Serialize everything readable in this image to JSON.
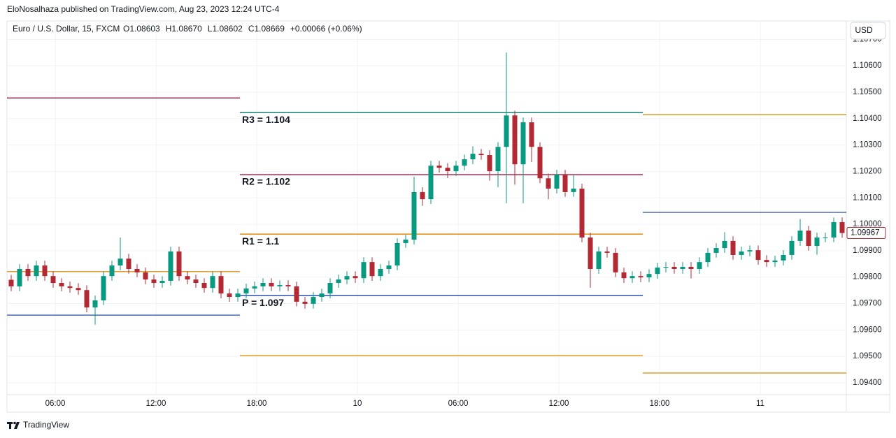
{
  "header": {
    "publisher": "EloNosalhaza published on TradingView.com, Aug 23, 2023 12:24 UTC-4"
  },
  "legend": {
    "symbol": "Euro / U.S. Dollar, 15, FXCM",
    "values": [
      "O1.08603",
      "H1.08670",
      "L1.08602",
      "C1.08669",
      "+0.00066 (+0.06%)"
    ]
  },
  "currency": "USD",
  "footer": {
    "brand": "TradingView"
  },
  "chart_data": {
    "type": "candlestick",
    "up_color": "#089981",
    "down_color": "#b22833",
    "grid": true,
    "xlim": [
      3.125,
      53.125
    ],
    "xticks": [
      {
        "value": 6,
        "label": "06:00"
      },
      {
        "value": 12,
        "label": "12:00"
      },
      {
        "value": 18,
        "label": "18:00"
      },
      {
        "value": 24,
        "label": "10"
      },
      {
        "value": 30,
        "label": "06:00"
      },
      {
        "value": 36,
        "label": "12:00"
      },
      {
        "value": 42,
        "label": "18:00"
      },
      {
        "value": 48,
        "label": "11"
      }
    ],
    "ylim": [
      1.09355,
      1.1073
    ],
    "yticks": [
      {
        "value": 1.094,
        "label": "1.09400"
      },
      {
        "value": 1.095,
        "label": "1.09500"
      },
      {
        "value": 1.096,
        "label": "1.09600"
      },
      {
        "value": 1.097,
        "label": "1.09700"
      },
      {
        "value": 1.098,
        "label": "1.09800"
      },
      {
        "value": 1.099,
        "label": "1.09900"
      },
      {
        "value": 1.1,
        "label": "1.10000"
      },
      {
        "value": 1.101,
        "label": "1.10100"
      },
      {
        "value": 1.102,
        "label": "1.10200"
      },
      {
        "value": 1.103,
        "label": "1.10300"
      },
      {
        "value": 1.104,
        "label": "1.10400"
      },
      {
        "value": 1.105,
        "label": "1.10500"
      },
      {
        "value": 1.106,
        "label": "1.10600"
      },
      {
        "value": 1.107,
        "label": "1.10700"
      }
    ],
    "x": [
      3.375,
      3.875,
      4.375,
      4.875,
      5.375,
      5.875,
      6.375,
      6.875,
      7.375,
      7.875,
      8.375,
      8.875,
      9.375,
      9.875,
      10.375,
      10.875,
      11.375,
      11.875,
      12.375,
      12.875,
      13.375,
      13.875,
      14.375,
      14.875,
      15.375,
      15.875,
      16.375,
      16.875,
      17.375,
      17.875,
      18.375,
      18.875,
      19.375,
      19.875,
      20.375,
      20.875,
      21.375,
      21.875,
      22.375,
      22.875,
      23.375,
      23.875,
      24.375,
      24.875,
      25.375,
      25.875,
      26.375,
      26.875,
      27.375,
      27.875,
      28.375,
      28.875,
      29.375,
      29.875,
      30.375,
      30.875,
      31.375,
      31.875,
      32.375,
      32.875,
      33.375,
      33.875,
      34.375,
      34.875,
      35.375,
      35.875,
      36.375,
      36.875,
      37.375,
      37.875,
      38.375,
      38.875,
      39.375,
      39.875,
      40.375,
      40.875,
      41.375,
      41.875,
      42.375,
      42.875,
      43.375,
      43.875,
      44.375,
      44.875,
      45.375,
      45.875,
      46.375,
      46.875,
      47.375,
      47.875,
      48.375,
      48.875,
      49.375,
      49.875,
      50.375,
      50.875,
      51.375,
      51.875,
      52.375,
      52.875
    ],
    "open": [
      1.0979,
      1.09765,
      1.09831,
      1.09804,
      1.09844,
      1.09804,
      1.09778,
      1.09765,
      1.09759,
      1.09751,
      1.09685,
      1.09712,
      1.09804,
      1.09844,
      1.0987,
      1.09831,
      1.09818,
      1.09791,
      1.09778,
      1.09786,
      1.09897,
      1.09804,
      1.09791,
      1.09778,
      1.09759,
      1.09804,
      1.09738,
      1.09725,
      1.09738,
      1.09757,
      1.09765,
      1.09778,
      1.09765,
      1.0977,
      1.09765,
      1.09707,
      1.09699,
      1.09725,
      1.09738,
      1.09778,
      1.09791,
      1.09804,
      1.09796,
      1.09857,
      1.09804,
      1.09831,
      1.09844,
      1.09929,
      1.09942,
      1.10122,
      1.10095,
      1.10222,
      1.10214,
      1.10201,
      1.10222,
      1.10246,
      1.10267,
      1.10262,
      1.10201,
      1.10293,
      1.10412,
      1.10227,
      1.10386,
      1.10293,
      1.10174,
      1.10135,
      1.10188,
      1.10122,
      1.10135,
      1.0995,
      1.09831,
      1.09897,
      1.09892,
      1.09818,
      1.09796,
      1.09804,
      1.09799,
      1.09812,
      1.09836,
      1.09839,
      1.09831,
      1.09839,
      1.09831,
      1.09857,
      1.09892,
      1.0991,
      1.09937,
      1.09884,
      1.09897,
      1.09902,
      1.09865,
      1.09857,
      1.09863,
      1.09884,
      1.09937,
      1.09976,
      1.09918,
      1.0995,
      1.0995,
      1.10008
    ],
    "high": [
      1.09808,
      1.09849,
      1.09849,
      1.09862,
      1.09862,
      1.09822,
      1.09796,
      1.09783,
      1.09777,
      1.09769,
      1.0973,
      1.09822,
      1.09862,
      1.0995,
      1.09888,
      1.09849,
      1.09836,
      1.09809,
      1.09804,
      1.09915,
      1.09915,
      1.09822,
      1.09809,
      1.09796,
      1.09822,
      1.09822,
      1.09756,
      1.09756,
      1.09775,
      1.09783,
      1.09796,
      1.09796,
      1.09788,
      1.09788,
      1.09783,
      1.09725,
      1.09743,
      1.09756,
      1.09796,
      1.09809,
      1.09822,
      1.09822,
      1.09875,
      1.09875,
      1.09849,
      1.09862,
      1.09947,
      1.0996,
      1.1018,
      1.1014,
      1.1024,
      1.1024,
      1.10232,
      1.1024,
      1.10264,
      1.10295,
      1.10285,
      1.1028,
      1.10311,
      1.1065,
      1.1043,
      1.10404,
      1.10404,
      1.10311,
      1.10192,
      1.10206,
      1.10206,
      1.10188,
      1.10153,
      1.09968,
      1.09915,
      1.09915,
      1.0991,
      1.09836,
      1.09822,
      1.09822,
      1.0983,
      1.09854,
      1.09857,
      1.09857,
      1.09857,
      1.09857,
      1.09875,
      1.0991,
      1.09928,
      1.0997,
      1.09955,
      1.09915,
      1.0992,
      1.0992,
      1.09883,
      1.09881,
      1.09902,
      1.09955,
      1.1002,
      1.09994,
      1.09968,
      1.09968,
      1.10026,
      1.10026
    ],
    "low": [
      1.09747,
      1.09747,
      1.09786,
      1.09786,
      1.09786,
      1.0976,
      1.09747,
      1.09741,
      1.09733,
      1.09667,
      1.0962,
      1.09694,
      1.09786,
      1.09826,
      1.09813,
      1.098,
      1.09773,
      1.0976,
      1.0976,
      1.09768,
      1.09786,
      1.09773,
      1.0976,
      1.09741,
      1.09741,
      1.0972,
      1.09707,
      1.09707,
      1.0972,
      1.09739,
      1.09747,
      1.09747,
      1.09747,
      1.09747,
      1.09689,
      1.09681,
      1.09681,
      1.09707,
      1.0972,
      1.0976,
      1.09773,
      1.09778,
      1.09778,
      1.09786,
      1.09786,
      1.09813,
      1.09826,
      1.09911,
      1.09924,
      1.1007,
      1.10077,
      1.10196,
      1.10175,
      1.10183,
      1.10204,
      1.10228,
      1.10244,
      1.10165,
      1.1014,
      1.1008,
      1.1015,
      1.1008,
      1.10236,
      1.10156,
      1.10095,
      1.10117,
      1.10104,
      1.10104,
      1.09932,
      1.0976,
      1.09813,
      1.09874,
      1.098,
      1.09778,
      1.09778,
      1.09781,
      1.09781,
      1.09794,
      1.09818,
      1.09813,
      1.09813,
      1.09795,
      1.09813,
      1.09839,
      1.09874,
      1.09892,
      1.09866,
      1.09866,
      1.09879,
      1.09847,
      1.09839,
      1.09839,
      1.09845,
      1.09866,
      1.09919,
      1.099,
      1.09885,
      1.09932,
      1.09932,
      1.09949
    ],
    "close": [
      1.09765,
      1.09831,
      1.09804,
      1.09844,
      1.09804,
      1.09778,
      1.09765,
      1.09759,
      1.09751,
      1.09685,
      1.09712,
      1.09804,
      1.09844,
      1.0987,
      1.09831,
      1.09818,
      1.09791,
      1.09778,
      1.09786,
      1.09897,
      1.09804,
      1.09791,
      1.09778,
      1.09759,
      1.09804,
      1.09738,
      1.09725,
      1.09738,
      1.09757,
      1.09765,
      1.09778,
      1.09765,
      1.0977,
      1.09765,
      1.09707,
      1.09699,
      1.09725,
      1.09738,
      1.09778,
      1.09791,
      1.09804,
      1.09796,
      1.09857,
      1.09804,
      1.09831,
      1.09844,
      1.09929,
      1.09942,
      1.10122,
      1.10095,
      1.10222,
      1.10214,
      1.10201,
      1.10222,
      1.10246,
      1.10267,
      1.10262,
      1.10201,
      1.10293,
      1.10412,
      1.10227,
      1.10386,
      1.10293,
      1.10174,
      1.10135,
      1.10188,
      1.10122,
      1.10135,
      1.0995,
      1.09831,
      1.09897,
      1.09892,
      1.09818,
      1.09796,
      1.09804,
      1.09799,
      1.09812,
      1.09836,
      1.09839,
      1.09831,
      1.09839,
      1.09831,
      1.09857,
      1.09892,
      1.0991,
      1.09937,
      1.09884,
      1.09897,
      1.09902,
      1.09865,
      1.09857,
      1.09863,
      1.09884,
      1.09937,
      1.09976,
      1.09918,
      1.0995,
      1.0995,
      1.10008,
      1.09967
    ],
    "levels": [
      {
        "value": 1.10478,
        "from": 3.125,
        "to": 17.0,
        "color": "#b22a52"
      },
      {
        "value": 1.09821,
        "from": 3.125,
        "to": 17.0,
        "color": "#e39b2a"
      },
      {
        "value": 1.09656,
        "from": 3.125,
        "to": 17.0,
        "color": "#4a6cb3"
      },
      {
        "value": 1.10423,
        "from": 17.0,
        "to": 41.0,
        "color": "#138074",
        "label": "R3 = 1.104"
      },
      {
        "value": 1.10188,
        "from": 17.0,
        "to": 41.0,
        "color": "#b22a52",
        "label": "R2 = 1.102"
      },
      {
        "value": 1.09963,
        "from": 17.0,
        "to": 41.0,
        "color": "#e08c0b",
        "label": "R1 = 1.1"
      },
      {
        "value": 1.0973,
        "from": 17.0,
        "to": 41.0,
        "color": "#2a4fb5",
        "label": "P = 1.097"
      },
      {
        "value": 1.09503,
        "from": 17.0,
        "to": 41.0,
        "color": "#e39b2a"
      },
      {
        "value": 1.10415,
        "from": 41.0,
        "to": 53.125,
        "color": "#d39a2a"
      },
      {
        "value": 1.10045,
        "from": 41.0,
        "to": 53.125,
        "color": "#4a6cb3"
      },
      {
        "value": 1.09437,
        "from": 41.0,
        "to": 53.125,
        "color": "#e39b2a"
      }
    ]
  }
}
